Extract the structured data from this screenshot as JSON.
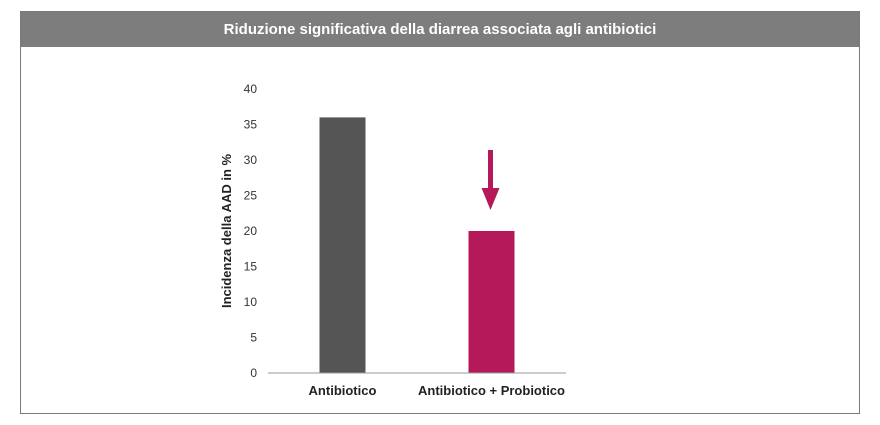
{
  "chart_data": {
    "type": "bar",
    "title": "Riduzione significativa della diarrea associata agli antibiotici",
    "ylabel": "Incidenza della AAD in %",
    "xlabel": "",
    "categories": [
      "Antibiotico",
      "Antibiotico + Probiotico"
    ],
    "values": [
      36,
      20
    ],
    "ylim": [
      0,
      40
    ],
    "yticks": [
      0,
      5,
      10,
      15,
      20,
      25,
      30,
      35,
      40
    ],
    "grid": false,
    "bar_colors": [
      "#555555",
      "#b5195a"
    ],
    "annotation": {
      "type": "down-arrow",
      "target": "Antibiotico + Probiotico",
      "color": "#b5195a"
    }
  },
  "colors": {
    "title_bar": "#7d7d7d",
    "frame_border": "#7a7a7a",
    "axis": "#999999"
  }
}
